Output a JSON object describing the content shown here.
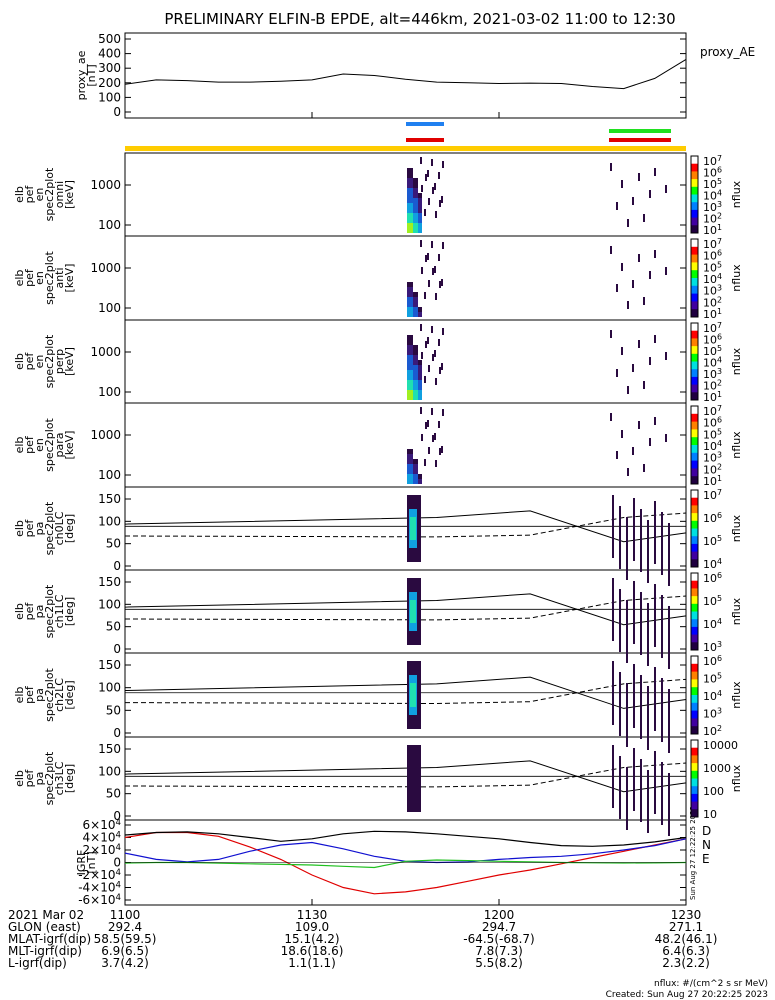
{
  "title": "PRELIMINARY ELFIN-B EPDE, alt=446km, 2021-03-02 11:00 to 12:30",
  "panels": [
    {
      "ylabel": [
        "proxy_ae",
        "[nT]"
      ],
      "ticks": [
        "500",
        "400",
        "300",
        "200",
        "100",
        "0"
      ],
      "legend": "proxy_AE"
    },
    {
      "ylabel": [
        "elb",
        "pef",
        "en",
        "spec2plot",
        "omni",
        "[keV]"
      ],
      "ticks": [
        "1000",
        "100"
      ],
      "cb_ticks": [
        "10^7",
        "10^6",
        "10^5",
        "10^4",
        "10^3",
        "10^2",
        "10^1"
      ],
      "cb_label": "nflux"
    },
    {
      "ylabel": [
        "elb",
        "pef",
        "en",
        "spec2plot",
        "anti",
        "[keV]"
      ],
      "ticks": [
        "1000",
        "100"
      ],
      "cb_ticks": [
        "10^7",
        "10^6",
        "10^5",
        "10^4",
        "10^3",
        "10^2",
        "10^1"
      ],
      "cb_label": "nflux"
    },
    {
      "ylabel": [
        "elb",
        "pef",
        "en",
        "spec2plot",
        "perp",
        "[keV]"
      ],
      "ticks": [
        "1000",
        "100"
      ],
      "cb_ticks": [
        "10^7",
        "10^6",
        "10^5",
        "10^4",
        "10^3",
        "10^2",
        "10^1"
      ],
      "cb_label": "nflux"
    },
    {
      "ylabel": [
        "elb",
        "pef",
        "en",
        "spec2plot",
        "para",
        "[keV]"
      ],
      "ticks": [
        "1000",
        "100"
      ],
      "cb_ticks": [
        "10^7",
        "10^6",
        "10^5",
        "10^4",
        "10^3",
        "10^2",
        "10^1"
      ],
      "cb_label": "nflux"
    },
    {
      "ylabel": [
        "elb",
        "pef",
        "pa",
        "spec2plot",
        "ch0LC",
        "[deg]"
      ],
      "ticks": [
        "150",
        "100",
        "50",
        "0"
      ],
      "cb_ticks": [
        "10^7",
        "10^6",
        "10^5",
        "10^4"
      ],
      "cb_label": "nflux"
    },
    {
      "ylabel": [
        "elb",
        "pef",
        "pa",
        "spec2plot",
        "ch1LC",
        "[deg]"
      ],
      "ticks": [
        "150",
        "100",
        "50",
        "0"
      ],
      "cb_ticks": [
        "10^6",
        "10^5",
        "10^4",
        "10^3"
      ],
      "cb_label": "nflux"
    },
    {
      "ylabel": [
        "elb",
        "pef",
        "pa",
        "spec2plot",
        "ch2LC",
        "[deg]"
      ],
      "ticks": [
        "150",
        "100",
        "50",
        "0"
      ],
      "cb_ticks": [
        "10^6",
        "10^5",
        "10^4",
        "10^3",
        "10^2"
      ],
      "cb_label": "nflux"
    },
    {
      "ylabel": [
        "elb",
        "pef",
        "pa",
        "spec2plot",
        "ch3LC",
        "[deg]"
      ],
      "ticks": [
        "150",
        "100",
        "50",
        "0"
      ],
      "cb_ticks": [
        "10000",
        "1000",
        "100",
        "10"
      ],
      "cb_label": "nflux"
    },
    {
      "ylabel": [
        "IGRF",
        "[nT]"
      ],
      "ticks": [
        "6x10^4",
        "4x10^4",
        "2x10^4",
        "0",
        "-2x10^4",
        "-4x10^4",
        "-6x10^4"
      ],
      "legend_D": "D",
      "legend_N": "N",
      "legend_E": "E"
    }
  ],
  "side_note": "Sun Aug 27 12:22:25 2023",
  "footer": {
    "labels": [
      "2021 Mar 02",
      "GLON (east)",
      "MLAT-igrf(dip)",
      "MLT-igrf(dip)",
      "L-igrf(dip)"
    ],
    "columns": [
      [
        "1100",
        "292.4",
        "58.5(59.5)",
        "6.9(6.5)",
        "3.7(4.2)"
      ],
      [
        "1130",
        "109.0",
        "15.1(4.2)",
        "18.6(18.6)",
        "1.1(1.1)"
      ],
      [
        "1200",
        "294.7",
        "-64.5(-68.7)",
        "7.8(7.3)",
        "5.5(8.2)"
      ],
      [
        "1230",
        "271.1",
        "48.2(46.1)",
        "6.4(6.3)",
        "2.3(2.2)"
      ]
    ],
    "units": "nflux: #/(cm^2 s sr MeV)",
    "created": "Created: Sun Aug 27 20:22:25 2023"
  },
  "colors": {
    "D": "#e00000",
    "N": "#1010d0",
    "E": "#20c020",
    "black": "#000000",
    "orbit_bar": "#ffcc00",
    "blue_bar": "#2080f0",
    "red_bar": "#e00000",
    "green_bar": "#20e020"
  },
  "chart_data": {
    "type": "line",
    "x_ticks": [
      "1100",
      "1130",
      "1200",
      "1230"
    ],
    "ae_series": {
      "x": [
        1100,
        1105,
        1110,
        1115,
        1120,
        1125,
        1130,
        1135,
        1140,
        1145,
        1150,
        1155,
        1200,
        1205,
        1210,
        1215,
        1220,
        1225,
        1230
      ],
      "y": [
        190,
        220,
        215,
        205,
        205,
        210,
        220,
        260,
        250,
        225,
        205,
        200,
        195,
        198,
        195,
        175,
        160,
        230,
        360
      ]
    },
    "igrf_series": [
      {
        "name": "D",
        "x": [
          1100,
          1105,
          1110,
          1115,
          1120,
          1125,
          1130,
          1135,
          1140,
          1145,
          1150,
          1155,
          1200,
          1205,
          1210,
          1215,
          1220,
          1225,
          1230
        ],
        "y": [
          40000,
          48000,
          48000,
          42000,
          25000,
          5000,
          -20000,
          -40000,
          -50000,
          -47000,
          -40000,
          -30000,
          -20000,
          -12000,
          -2000,
          8000,
          18000,
          28000,
          38000
        ]
      },
      {
        "name": "N",
        "x": [
          1100,
          1105,
          1110,
          1115,
          1120,
          1125,
          1130,
          1135,
          1140,
          1145,
          1150,
          1155,
          1200,
          1205,
          1210,
          1215,
          1220,
          1225,
          1230
        ],
        "y": [
          15000,
          5000,
          1000,
          5000,
          18000,
          28000,
          32000,
          22000,
          10000,
          2000,
          0,
          1000,
          5000,
          8000,
          10000,
          14000,
          20000,
          27000,
          38000
        ]
      },
      {
        "name": "E",
        "x": [
          1100,
          1105,
          1110,
          1115,
          1120,
          1125,
          1130,
          1135,
          1140,
          1145,
          1150,
          1155,
          1200,
          1205,
          1210,
          1215,
          1220,
          1225,
          1230
        ],
        "y": [
          -1000,
          0,
          0,
          -1000,
          -2000,
          -3000,
          -4000,
          -6000,
          -8000,
          2000,
          4000,
          3000,
          2000,
          1000,
          0,
          -500,
          -800,
          -600,
          0
        ]
      },
      {
        "name": "total",
        "x": [
          1100,
          1105,
          1110,
          1115,
          1120,
          1125,
          1130,
          1135,
          1140,
          1145,
          1150,
          1155,
          1200,
          1205,
          1210,
          1215,
          1220,
          1225,
          1230
        ],
        "y": [
          44000,
          48000,
          49000,
          46000,
          40000,
          34000,
          38000,
          46000,
          50000,
          49000,
          46000,
          42000,
          38000,
          32000,
          27000,
          26000,
          28000,
          33000,
          40000
        ]
      }
    ]
  }
}
